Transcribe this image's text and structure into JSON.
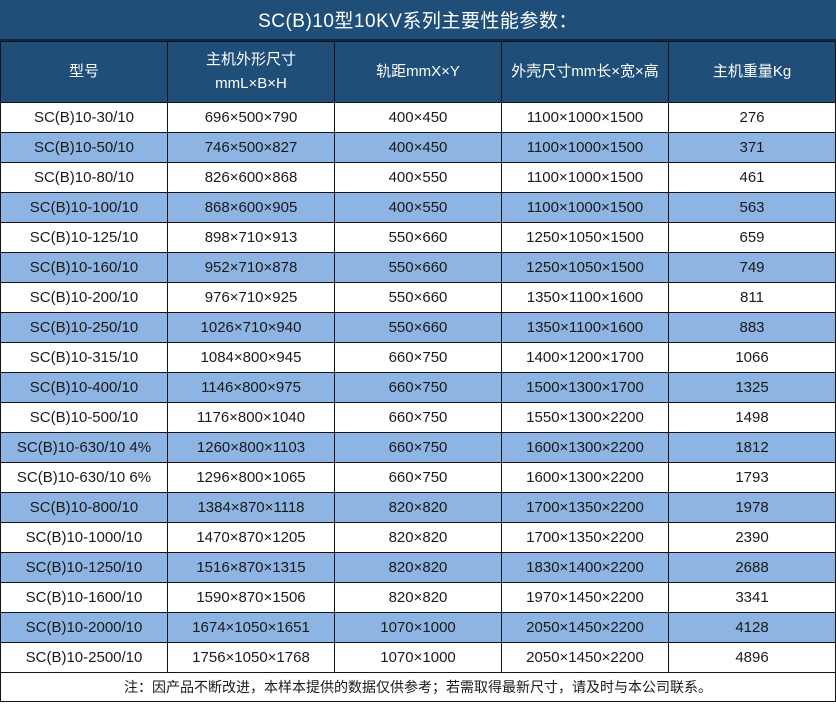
{
  "title": "SC(B)10型10KV系列主要性能参数：",
  "colors": {
    "header_bg": "#1f4e79",
    "row_alt_bg": "#8db4e2",
    "border": "#141414",
    "header_text": "#ffffff",
    "body_text": "#1a1a1a"
  },
  "table": {
    "headers": [
      "型号",
      "主机外形尺寸\nmmL×B×H",
      "轨距mmX×Y",
      "外壳尺寸mm长×宽×高",
      "主机重量Kg"
    ],
    "rows": [
      [
        "SC(B)10-30/10",
        "696×500×790",
        "400×450",
        "1100×1000×1500",
        "276"
      ],
      [
        "SC(B)10-50/10",
        "746×500×827",
        "400×450",
        "1100×1000×1500",
        "371"
      ],
      [
        "SC(B)10-80/10",
        "826×600×868",
        "400×550",
        "1100×1000×1500",
        "461"
      ],
      [
        "SC(B)10-100/10",
        "868×600×905",
        "400×550",
        "1100×1000×1500",
        "563"
      ],
      [
        "SC(B)10-125/10",
        "898×710×913",
        "550×660",
        "1250×1050×1500",
        "659"
      ],
      [
        "SC(B)10-160/10",
        "952×710×878",
        "550×660",
        "1250×1050×1500",
        "749"
      ],
      [
        "SC(B)10-200/10",
        "976×710×925",
        "550×660",
        "1350×1100×1600",
        "811"
      ],
      [
        "SC(B)10-250/10",
        "1026×710×940",
        "550×660",
        "1350×1100×1600",
        "883"
      ],
      [
        "SC(B)10-315/10",
        "1084×800×945",
        "660×750",
        "1400×1200×1700",
        "1066"
      ],
      [
        "SC(B)10-400/10",
        "1146×800×975",
        "660×750",
        "1500×1300×1700",
        "1325"
      ],
      [
        "SC(B)10-500/10",
        "1176×800×1040",
        "660×750",
        "1550×1300×2200",
        "1498"
      ],
      [
        "SC(B)10-630/10 4%",
        "1260×800×1103",
        "660×750",
        "1600×1300×2200",
        "1812"
      ],
      [
        "SC(B)10-630/10 6%",
        "1296×800×1065",
        "660×750",
        "1600×1300×2200",
        "1793"
      ],
      [
        "SC(B)10-800/10",
        "1384×870×1118",
        "820×820",
        "1700×1350×2200",
        "1978"
      ],
      [
        "SC(B)10-1000/10",
        "1470×870×1205",
        "820×820",
        "1700×1350×2200",
        "2390"
      ],
      [
        "SC(B)10-1250/10",
        "1516×870×1315",
        "820×820",
        "1830×1400×2200",
        "2688"
      ],
      [
        "SC(B)10-1600/10",
        "1590×870×1506",
        "820×820",
        "1970×1450×2200",
        "3341"
      ],
      [
        "SC(B)10-2000/10",
        "1674×1050×1651",
        "1070×1000",
        "2050×1450×2200",
        "4128"
      ],
      [
        "SC(B)10-2500/10",
        "1756×1050×1768",
        "1070×1000",
        "2050×1450×2200",
        "4896"
      ]
    ]
  },
  "footer_note": "注：因产品不断改进，本样本提供的数据仅供参考；若需取得最新尺寸，请及时与本公司联系。"
}
